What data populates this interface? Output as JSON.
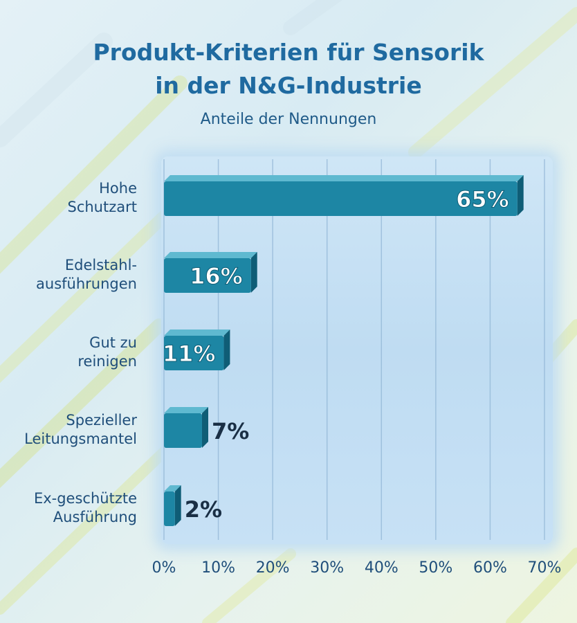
{
  "chart_data": {
    "type": "bar",
    "orientation": "horizontal",
    "title": "Produkt-Kriterien für Sensorik in der N&G-Industrie",
    "title_lines": [
      "Produkt-Kriterien für Sensorik",
      "in der N&G-Industrie"
    ],
    "subtitle": "Anteile der Nennungen",
    "categories": [
      [
        "Hohe",
        "Schutzart"
      ],
      [
        "Edelstahl-",
        "ausführungen"
      ],
      [
        "Gut zu",
        "reinigen"
      ],
      [
        "Spezieller",
        "Leitungsmantel"
      ],
      [
        "Ex-geschützte",
        "Ausführung"
      ]
    ],
    "values": [
      65,
      16,
      11,
      7,
      2
    ],
    "value_labels": [
      "65%",
      "16%",
      "11%",
      "7%",
      "2%"
    ],
    "xlim": [
      0,
      70
    ],
    "xticks": [
      "0%",
      "10%",
      "20%",
      "30%",
      "40%",
      "50%",
      "60%",
      "70%"
    ],
    "grid": true,
    "colors": {
      "bar": "#1d86a4",
      "bar_top": "#5fb9d0",
      "bar_side": "#0f5d76",
      "title": "#1f6aa0",
      "label": "#1f4e7a",
      "grid": "#8fb4d4"
    }
  }
}
